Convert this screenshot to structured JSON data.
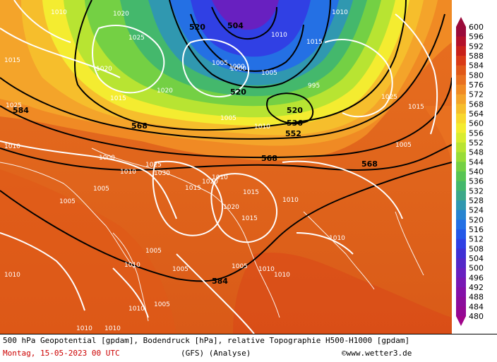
{
  "legend": {
    "values": [
      "600",
      "596",
      "592",
      "588",
      "584",
      "580",
      "576",
      "572",
      "568",
      "564",
      "560",
      "556",
      "552",
      "548",
      "544",
      "540",
      "536",
      "532",
      "528",
      "524",
      "520",
      "516",
      "512",
      "508",
      "504",
      "500",
      "496",
      "492",
      "488",
      "484",
      "480"
    ],
    "colors": [
      "#9a0a3a",
      "#b3102a",
      "#c8201a",
      "#d93a16",
      "#e05818",
      "#e87020",
      "#f08a24",
      "#f4a42a",
      "#f6be2c",
      "#f8d82e",
      "#f4ec30",
      "#d8ec30",
      "#b8e432",
      "#98dc38",
      "#74d044",
      "#58c454",
      "#44b86c",
      "#3ca88a",
      "#3098b0",
      "#2884d0",
      "#2470e4",
      "#2458e8",
      "#3040e4",
      "#4030d4",
      "#5428c8",
      "#6820c0",
      "#7818b4",
      "#8410a8",
      "#8c0c9c",
      "#940894",
      "#a0048a"
    ]
  },
  "footer": {
    "line1": "500 hPa Geopotential [gpdam], Bodendruck [hPa], relative Topographie H500-H1000 [gpdam]",
    "date": "Montag, 15-05-2023  00 UTC",
    "model": "(GFS)  (Analyse)",
    "credit": "©www.wetter3.de"
  },
  "map": {
    "geopotential_labels": [
      "504",
      "520",
      "520",
      "520",
      "536",
      "552",
      "568",
      "568",
      "568",
      "584",
      "584"
    ],
    "pressure_labels": [
      "1010",
      "1020",
      "1025",
      "1015",
      "1020",
      "1005",
      "1000",
      "1005",
      "1015",
      "1010",
      "1005",
      "1000",
      "995",
      "1010",
      "1015",
      "1020",
      "1025",
      "1010",
      "1005",
      "1000",
      "1010",
      "1015",
      "1020",
      "1025",
      "1030",
      "1005",
      "1010",
      "1015",
      "1020",
      "1010",
      "1005",
      "1015",
      "1010",
      "1005",
      "1010",
      "1005",
      "1010",
      "1005",
      "1010",
      "1010",
      "1005",
      "1010",
      "1010",
      "1010",
      "1010",
      "1015",
      "1025"
    ]
  }
}
